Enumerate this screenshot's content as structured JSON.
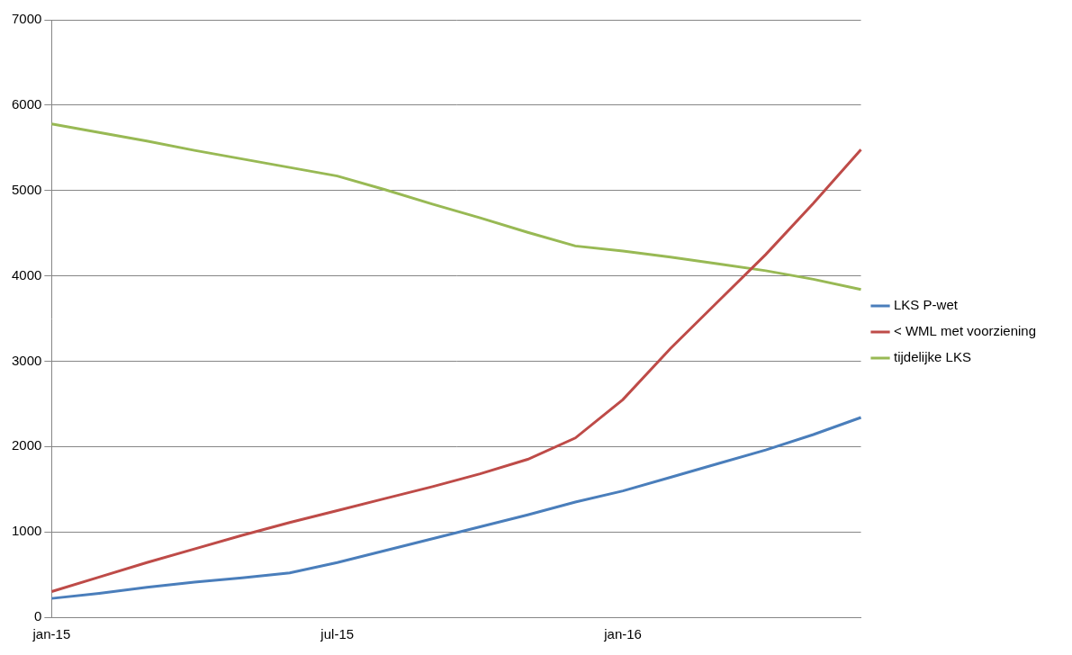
{
  "chart_data": {
    "type": "line",
    "categories": [
      "jan-15",
      null,
      null,
      null,
      null,
      null,
      "jul-15",
      null,
      null,
      null,
      null,
      null,
      "jan-16",
      null,
      null,
      null,
      null,
      null
    ],
    "series": [
      {
        "name": "LKS P-wet",
        "color": "#4a7ebb",
        "values": [
          220,
          280,
          350,
          410,
          460,
          520,
          640,
          780,
          920,
          1060,
          1200,
          1350,
          1480,
          1640,
          1800,
          1960,
          2140,
          2340
        ]
      },
      {
        "name": "< WML met voorziening",
        "color": "#be4b48",
        "values": [
          300,
          470,
          640,
          800,
          960,
          1110,
          1250,
          1390,
          1530,
          1680,
          1850,
          2100,
          2550,
          3150,
          3700,
          4250,
          4850,
          5480
        ]
      },
      {
        "name": "tijdelijke LKS",
        "color": "#98b954",
        "values": [
          5780,
          5680,
          5580,
          5470,
          5370,
          5270,
          5170,
          5010,
          4840,
          4680,
          4510,
          4350,
          4290,
          4220,
          4140,
          4060,
          3960,
          3840
        ]
      }
    ],
    "ylim": [
      0,
      7000
    ],
    "yticks": [
      0,
      1000,
      2000,
      3000,
      4000,
      5000,
      6000,
      7000
    ],
    "grid": true,
    "legend": "right",
    "marker": "none"
  }
}
